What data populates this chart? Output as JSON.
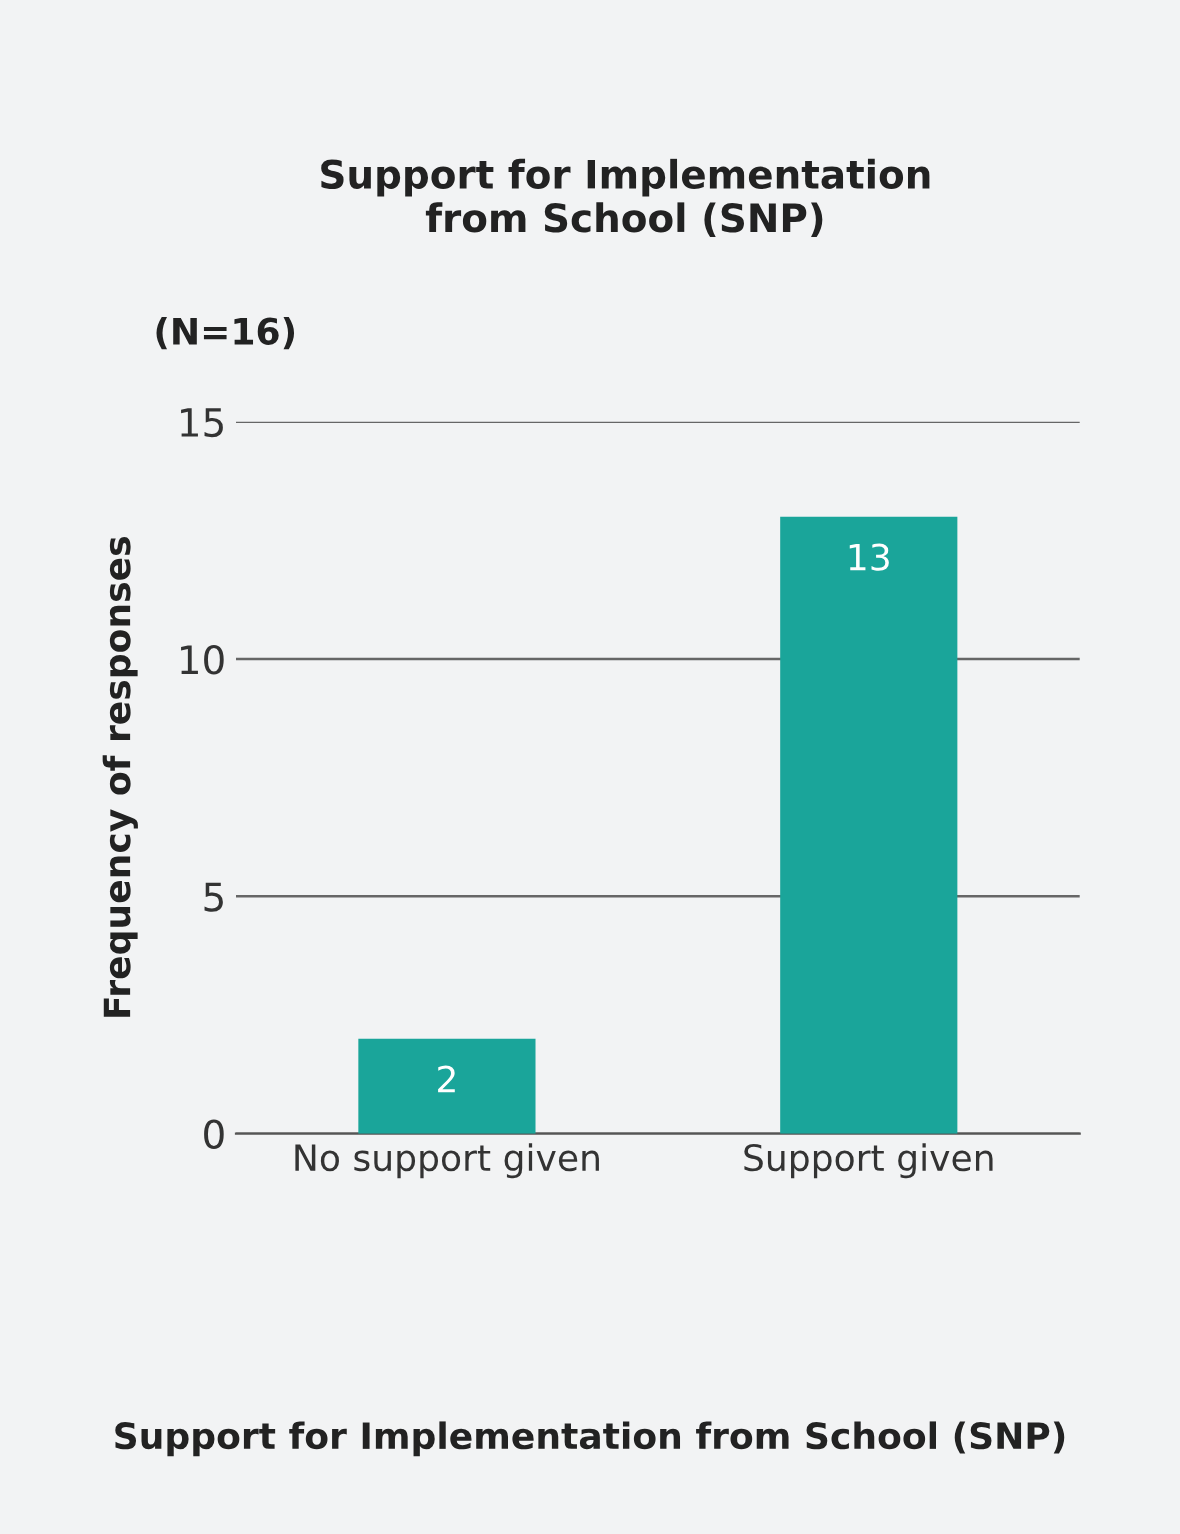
{
  "chart_data": {
    "type": "bar",
    "title": "Support for Implementation\nfrom School (SNP)",
    "subtitle": "(N=16)",
    "annotations": [
      "Support for Implementation from School (SNP)"
    ],
    "ylabel": "Frequency of responses",
    "categories": [
      "No support given",
      "Support given"
    ],
    "values": [
      2,
      13
    ],
    "color": "#1aa59a",
    "ylim": [
      0,
      15
    ],
    "yticks": [
      0,
      5,
      10,
      15
    ],
    "grid": "y",
    "data_labels": true
  }
}
